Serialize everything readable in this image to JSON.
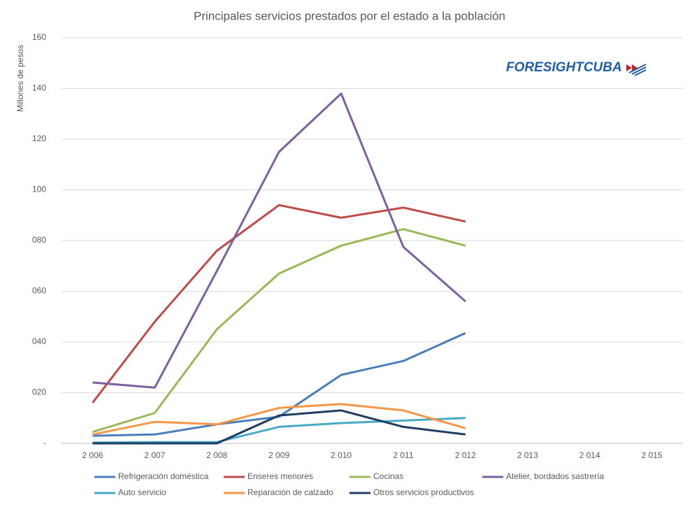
{
  "chart_data": {
    "type": "line",
    "title": "Principales servicios prestados por el estado a la población",
    "y_label": "Millones de pesos",
    "logo": "FORESIGHTCUBA",
    "categories": [
      "2 006",
      "2 007",
      "2 008",
      "2 009",
      "2 010",
      "2 011",
      "2 012",
      "2 013",
      "2 014",
      "2 015"
    ],
    "ylim": [
      0,
      160
    ],
    "yticks": [
      {
        "value": 0,
        "label": "-"
      },
      {
        "value": 20,
        "label": "020"
      },
      {
        "value": 40,
        "label": "040"
      },
      {
        "value": 60,
        "label": "060"
      },
      {
        "value": 80,
        "label": "080"
      },
      100,
      120,
      140,
      160
    ],
    "grid": true,
    "series": [
      {
        "name": "Refrigeración doméstica",
        "color": "#4a7ebb",
        "values": [
          3,
          3.5,
          7.5,
          10.5,
          27,
          32.5,
          43.5,
          null,
          null,
          null
        ]
      },
      {
        "name": "Enseres menores",
        "color": "#be4b48",
        "values": [
          16,
          48,
          76,
          94,
          89,
          93,
          87.5,
          null,
          null,
          null
        ]
      },
      {
        "name": "Cocinas",
        "color": "#98b954",
        "values": [
          4.5,
          12,
          45,
          67,
          78,
          84.5,
          78,
          null,
          null,
          null
        ]
      },
      {
        "name": "Atelier, bordados sastrería",
        "color": "#7d60a0",
        "values": [
          24,
          22,
          68,
          115,
          138,
          77.5,
          56,
          null,
          null,
          null
        ]
      },
      {
        "name": "Auto servicio",
        "color": "#46aac5",
        "values": [
          0.3,
          0.5,
          0.5,
          6.5,
          8,
          9,
          10,
          null,
          null,
          null
        ]
      },
      {
        "name": "Reparación de calzado",
        "color": "#f79646",
        "values": [
          3.5,
          8.5,
          7.5,
          14,
          15.5,
          13,
          6,
          null,
          null,
          null
        ]
      },
      {
        "name": "Otros servicios productivos",
        "color": "#1f3c63",
        "values": [
          0,
          0,
          0,
          11,
          13,
          6.5,
          3.5,
          null,
          null,
          null
        ]
      }
    ]
  }
}
